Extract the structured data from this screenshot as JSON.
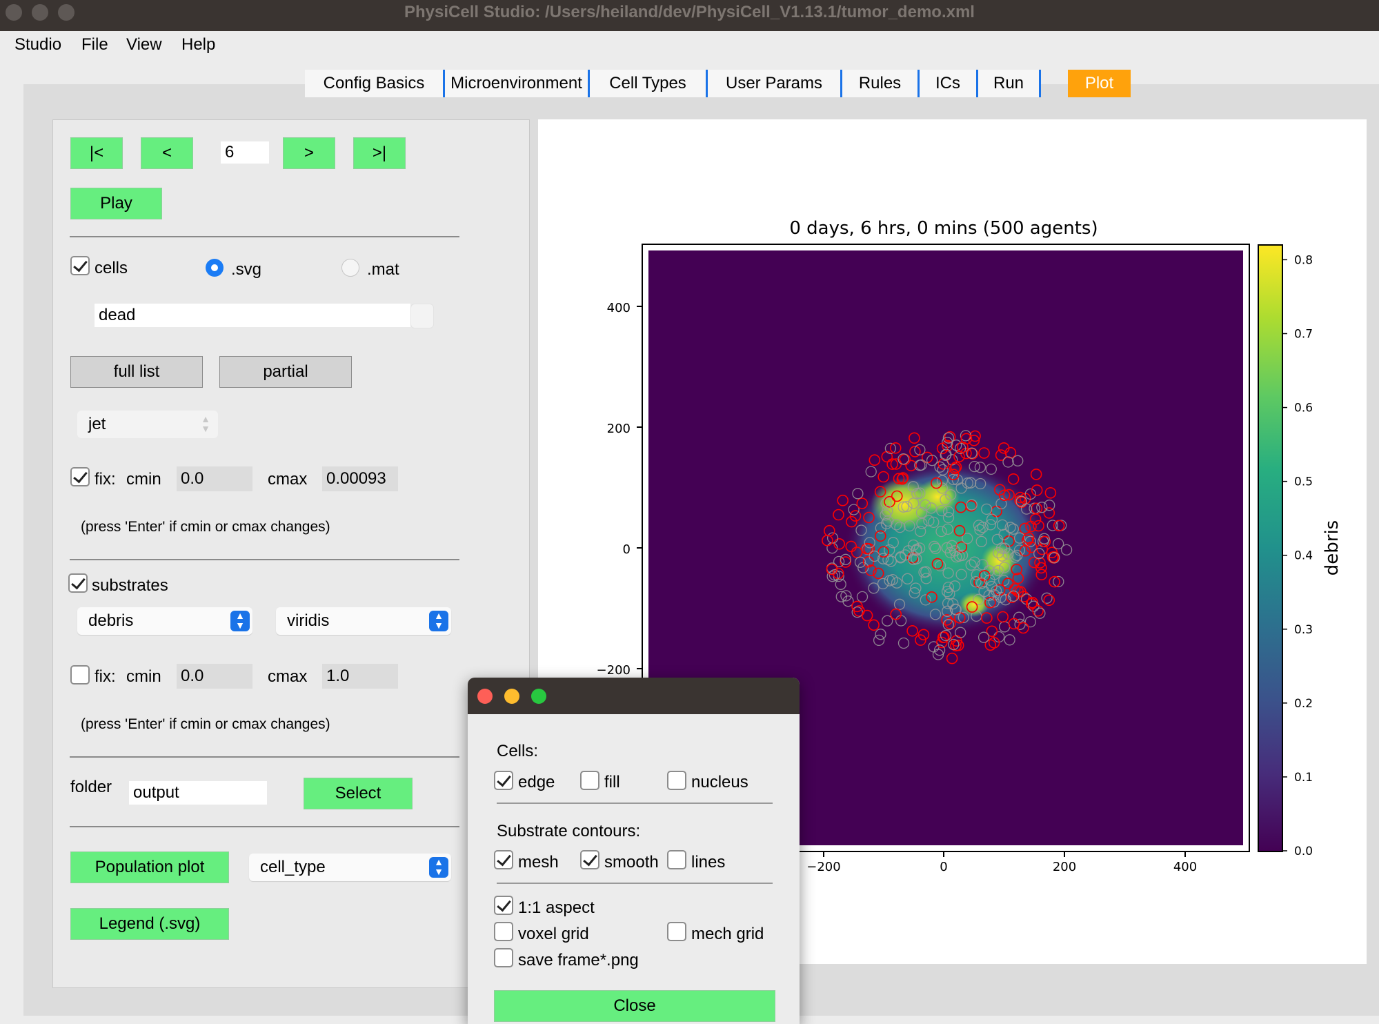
{
  "window": {
    "title": "PhysiCell Studio: /Users/heiland/dev/PhysiCell_V1.13.1/tumor_demo.xml"
  },
  "menubar": [
    "Studio",
    "File",
    "View",
    "Help"
  ],
  "tabs": [
    {
      "label": "Config Basics"
    },
    {
      "label": "Microenvironment"
    },
    {
      "label": "Cell Types"
    },
    {
      "label": "User Params"
    },
    {
      "label": "Rules"
    },
    {
      "label": "ICs"
    },
    {
      "label": "Run"
    },
    {
      "label": "Plot",
      "active": true
    }
  ],
  "nav": {
    "first": "|<",
    "prev": "<",
    "frame": "6",
    "next": ">",
    "last": ">|",
    "play": "Play"
  },
  "cells": {
    "checkbox_label": "cells",
    "checked": true,
    "format_svg": ".svg",
    "format_mat": ".mat",
    "format_selected": ".svg",
    "scalar": "dead",
    "full_list": "full list",
    "partial": "partial",
    "colormap": "jet",
    "fix_label": "fix:",
    "fix_checked": true,
    "cmin_label": "cmin",
    "cmin": "0.0",
    "cmax_label": "cmax",
    "cmax": "0.00093",
    "hint": "(press 'Enter' if cmin or cmax changes)"
  },
  "substrates": {
    "checkbox_label": "substrates",
    "checked": true,
    "substrate": "debris",
    "colormap": "viridis",
    "fix_label": "fix:",
    "fix_checked": false,
    "cmin_label": "cmin",
    "cmin": "0.0",
    "cmax_label": "cmax",
    "cmax": "1.0",
    "hint": "(press 'Enter' if cmin or cmax changes)"
  },
  "folder": {
    "label": "folder",
    "value": "output",
    "select": "Select"
  },
  "population": {
    "button": "Population plot",
    "option": "cell_type"
  },
  "legend": {
    "button": "Legend (.svg)"
  },
  "plot": {
    "title": "0 days, 6 hrs, 0 mins (500 agents)",
    "colorbar_label": "debris",
    "colorbar_ticks": [
      "0.0",
      "0.1",
      "0.2",
      "0.3",
      "0.4",
      "0.5",
      "0.6",
      "0.7",
      "0.8"
    ],
    "yticks": [
      "400",
      "200",
      "0",
      "−200"
    ],
    "xticks": [
      "−200",
      "0",
      "200",
      "400"
    ]
  },
  "chart_data": {
    "type": "heatmap",
    "title": "0 days, 6 hrs, 0 mins (500 agents)",
    "xlabel": "",
    "ylabel": "",
    "xlim": [
      -500,
      500
    ],
    "ylim": [
      -500,
      500
    ],
    "xticks": [
      -200,
      0,
      200,
      400
    ],
    "yticks": [
      -200,
      0,
      200,
      400
    ],
    "colorbar": {
      "label": "debris",
      "colormap": "viridis",
      "range": [
        0,
        0.82
      ],
      "ticks": [
        0.0,
        0.1,
        0.2,
        0.3,
        0.4,
        0.5,
        0.6,
        0.7,
        0.8
      ]
    },
    "agents": 500
  },
  "popup": {
    "cells_label": "Cells:",
    "edge": "edge",
    "edge_checked": true,
    "fill": "fill",
    "fill_checked": false,
    "nucleus": "nucleus",
    "nucleus_checked": false,
    "substrate_label": "Substrate contours:",
    "mesh": "mesh",
    "mesh_checked": true,
    "smooth": "smooth",
    "smooth_checked": true,
    "lines": "lines",
    "lines_checked": false,
    "aspect": "1:1 aspect",
    "aspect_checked": true,
    "voxel": "voxel grid",
    "voxel_checked": false,
    "mech": "mech grid",
    "mech_checked": false,
    "save": "save frame*.png",
    "save_checked": false,
    "close": "Close"
  },
  "colors": {
    "accent_green": "#66ee7f",
    "tab_active": "#ffa20c",
    "tab_separator": "#1a73e8",
    "dead_cell_edge": "#ff0000",
    "live_cell_edge": "#9a9a9a"
  }
}
